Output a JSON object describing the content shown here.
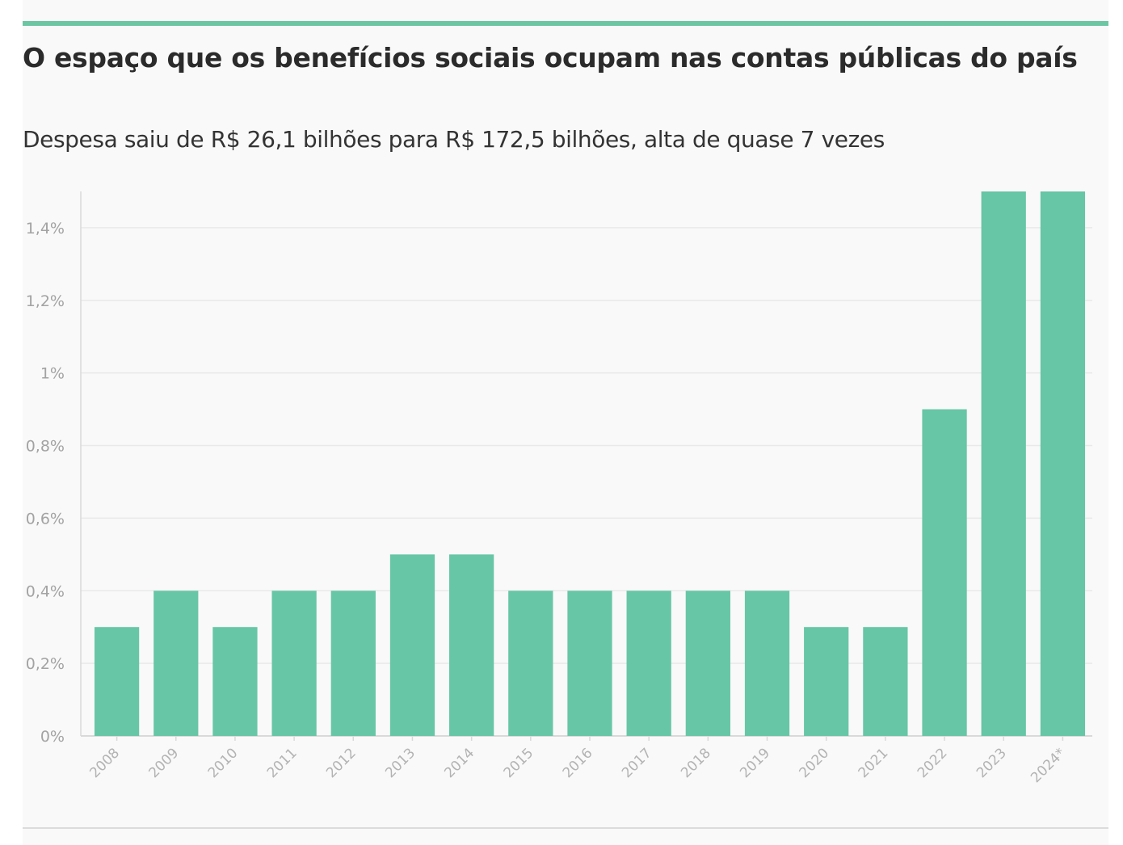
{
  "colors": {
    "accent": "#6cc6a4",
    "bar": "#67c6a6",
    "grid": "#e9e9e9",
    "axis": "#d9d9d9"
  },
  "header": {
    "title": "O espaço que os benefícios sociais ocupam nas contas públicas do país",
    "subtitle": "Despesa saiu de R$ 26,1 bilhões para R$ 172,5 bilhões, alta de quase 7 vezes"
  },
  "chart_data": {
    "type": "bar",
    "title": "O espaço que os benefícios sociais ocupam nas contas públicas do país",
    "subtitle": "Despesa saiu de R$ 26,1 bilhões para R$ 172,5 bilhões, alta de quase 7 vezes",
    "xlabel": "",
    "ylabel": "",
    "categories": [
      "2008",
      "2009",
      "2010",
      "2011",
      "2012",
      "2013",
      "2014",
      "2015",
      "2016",
      "2017",
      "2018",
      "2019",
      "2020",
      "2021",
      "2022",
      "2023",
      "2024*"
    ],
    "values": [
      0.3,
      0.4,
      0.3,
      0.4,
      0.4,
      0.5,
      0.5,
      0.4,
      0.4,
      0.4,
      0.4,
      0.4,
      0.3,
      0.3,
      0.9,
      1.5,
      1.5
    ],
    "unit": "%",
    "ylim": [
      0,
      1.5
    ],
    "yticks": [
      0,
      0.2,
      0.4,
      0.6,
      0.8,
      1,
      1.2,
      1.4
    ],
    "ytick_labels": [
      "0%",
      "0,2%",
      "0,4%",
      "0,6%",
      "0,8%",
      "1%",
      "1,2%",
      "1,4%"
    ],
    "grid": true,
    "legend": "none"
  }
}
